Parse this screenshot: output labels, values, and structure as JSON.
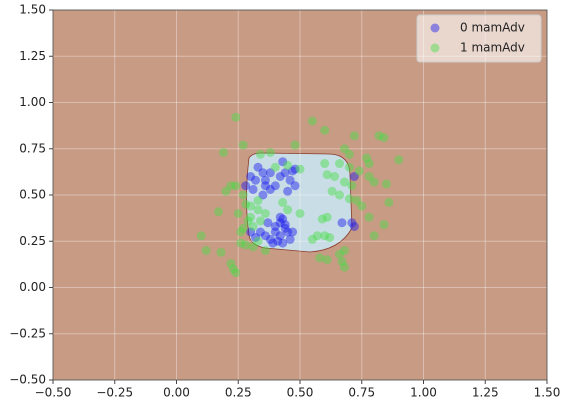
{
  "chart_data": {
    "type": "scatter",
    "xlim": [
      -0.5,
      1.5
    ],
    "ylim": [
      -0.5,
      1.5
    ],
    "xticks": [
      {
        "value": -0.5,
        "label": "−0.50"
      },
      {
        "value": -0.25,
        "label": "−0.25"
      },
      {
        "value": 0,
        "label": "0.00"
      },
      {
        "value": 0.25,
        "label": "0.25"
      },
      {
        "value": 0.5,
        "label": "0.50"
      },
      {
        "value": 0.75,
        "label": "0.75"
      },
      {
        "value": 1,
        "label": "1.00"
      },
      {
        "value": 1.25,
        "label": "1.25"
      },
      {
        "value": 1.5,
        "label": "1.50"
      }
    ],
    "yticks": [
      {
        "value": -0.5,
        "label": "−0.50"
      },
      {
        "value": -0.25,
        "label": "−0.25"
      },
      {
        "value": 0,
        "label": "0.00"
      },
      {
        "value": 0.25,
        "label": "0.25"
      },
      {
        "value": 0.5,
        "label": "0.50"
      },
      {
        "value": 0.75,
        "label": "0.75"
      },
      {
        "value": 1,
        "label": "1.00"
      },
      {
        "value": 1.25,
        "label": "1.25"
      },
      {
        "value": 1.5,
        "label": "1.50"
      }
    ],
    "grid": true,
    "legend": "upper right",
    "series": [
      {
        "name": "0 mamAdv",
        "color": "#1a1aee",
        "x": [
          0.33,
          0.35,
          0.3,
          0.32,
          0.36,
          0.38,
          0.4,
          0.42,
          0.44,
          0.46,
          0.43,
          0.47,
          0.48,
          0.45,
          0.38,
          0.35,
          0.31,
          0.34,
          0.36,
          0.38,
          0.4,
          0.42,
          0.43,
          0.44,
          0.45,
          0.47,
          0.42,
          0.41,
          0.37,
          0.32,
          0.3,
          0.39,
          0.43,
          0.46,
          0.72,
          0.71,
          0.72,
          0.67,
          0.28,
          0.48,
          0.36,
          0.4,
          0.44,
          0.42
        ],
        "values": [
          0.65,
          0.62,
          0.6,
          0.58,
          0.55,
          0.53,
          0.55,
          0.6,
          0.62,
          0.58,
          0.68,
          0.63,
          0.55,
          0.52,
          0.62,
          0.5,
          0.53,
          0.3,
          0.28,
          0.26,
          0.33,
          0.35,
          0.37,
          0.32,
          0.3,
          0.3,
          0.28,
          0.25,
          0.35,
          0.27,
          0.3,
          0.24,
          0.24,
          0.26,
          0.6,
          0.35,
          0.33,
          0.35,
          0.55,
          0.64,
          0.58,
          0.3,
          0.34,
          0.38
        ]
      },
      {
        "name": "1 mamAdv",
        "color": "#44dd44",
        "x": [
          0.24,
          0.55,
          0.6,
          0.72,
          0.82,
          0.84,
          0.27,
          0.19,
          0.34,
          0.38,
          0.48,
          0.68,
          0.7,
          0.77,
          0.9,
          0.6,
          0.66,
          0.7,
          0.74,
          0.78,
          0.8,
          0.85,
          0.61,
          0.64,
          0.68,
          0.71,
          0.7,
          0.73,
          0.66,
          0.63,
          0.2,
          0.22,
          0.24,
          0.28,
          0.3,
          0.33,
          0.33,
          0.3,
          0.27,
          0.25,
          0.17,
          0.1,
          0.12,
          0.18,
          0.22,
          0.23,
          0.24,
          0.26,
          0.28,
          0.31,
          0.33,
          0.36,
          0.27,
          0.29,
          0.55,
          0.57,
          0.6,
          0.62,
          0.61,
          0.59,
          0.58,
          0.61,
          0.66,
          0.67,
          0.68,
          0.68,
          0.78,
          0.8,
          0.84,
          0.86,
          0.75,
          0.4,
          0.45,
          0.5,
          0.43,
          0.45,
          0.5,
          0.34,
          0.36,
          0.31,
          0.26,
          0.78
        ],
        "values": [
          0.92,
          0.9,
          0.85,
          0.82,
          0.82,
          0.81,
          0.77,
          0.73,
          0.72,
          0.73,
          0.77,
          0.75,
          0.72,
          0.7,
          0.69,
          0.67,
          0.67,
          0.65,
          0.63,
          0.6,
          0.57,
          0.56,
          0.61,
          0.6,
          0.57,
          0.55,
          0.48,
          0.47,
          0.5,
          0.52,
          0.52,
          0.55,
          0.55,
          0.45,
          0.44,
          0.42,
          0.47,
          0.38,
          0.5,
          0.4,
          0.41,
          0.28,
          0.2,
          0.19,
          0.13,
          0.1,
          0.08,
          0.24,
          0.23,
          0.22,
          0.25,
          0.2,
          0.32,
          0.36,
          0.26,
          0.28,
          0.28,
          0.27,
          0.38,
          0.37,
          0.16,
          0.15,
          0.18,
          0.14,
          0.11,
          0.2,
          0.38,
          0.28,
          0.34,
          0.46,
          0.44,
          0.65,
          0.66,
          0.64,
          0.46,
          0.42,
          0.4,
          0.36,
          0.4,
          0.33,
          0.3,
          0.67
        ]
      }
    ]
  }
}
